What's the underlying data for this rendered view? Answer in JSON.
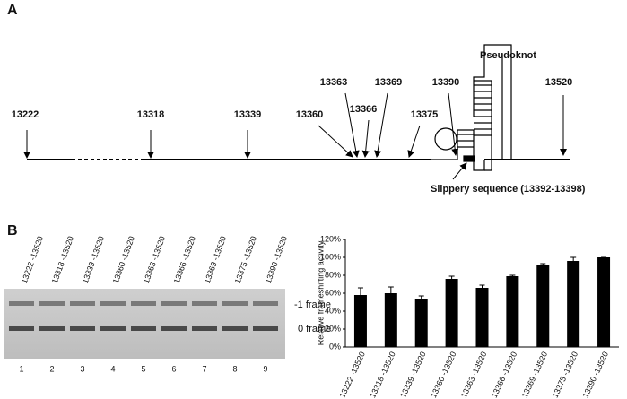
{
  "panel_a": {
    "label": "A",
    "positions": [
      "13222",
      "13318",
      "13339",
      "13360",
      "13363",
      "13366",
      "13369",
      "13375",
      "13390",
      "13520"
    ],
    "pseudoknot": "Pseudoknot",
    "slippery": "Slippery sequence (13392-13398)"
  },
  "panel_b": {
    "label": "B",
    "gel": {
      "lanes": [
        "13222 -13520",
        "13318 -13520",
        "13339 -13520",
        "13360 -13520",
        "13363 -13520",
        "13366 -13520",
        "13369 -13520",
        "13375 -13520",
        "13390 -13520"
      ],
      "lane_numbers": [
        "1",
        "2",
        "3",
        "4",
        "5",
        "6",
        "7",
        "8",
        "9"
      ],
      "bands": [
        "-1 frame",
        "0 frame"
      ]
    }
  },
  "chart_data": {
    "type": "bar",
    "y_label": "Relative frameshifting activity",
    "categories": [
      "13222 -13520",
      "13318 -13520",
      "13339 -13520",
      "13360 -13520",
      "13363 -13520",
      "13366 -13520",
      "13369 -13520",
      "13375 -13520",
      "13390 -13520"
    ],
    "values": [
      58,
      60,
      53,
      76,
      66,
      79,
      91,
      96,
      100
    ],
    "errors": [
      8,
      7,
      4,
      3,
      3,
      1,
      2,
      4,
      0
    ],
    "color": "#000000",
    "ylim": [
      0,
      120
    ],
    "yticks": [
      {
        "value": 0,
        "label": "0%"
      },
      {
        "value": 20,
        "label": "20%"
      },
      {
        "value": 40,
        "label": "40%"
      },
      {
        "value": 60,
        "label": "60%"
      },
      {
        "value": 80,
        "label": "80%"
      },
      {
        "value": 100,
        "label": "100%"
      },
      {
        "value": 120,
        "label": "120%"
      }
    ]
  }
}
